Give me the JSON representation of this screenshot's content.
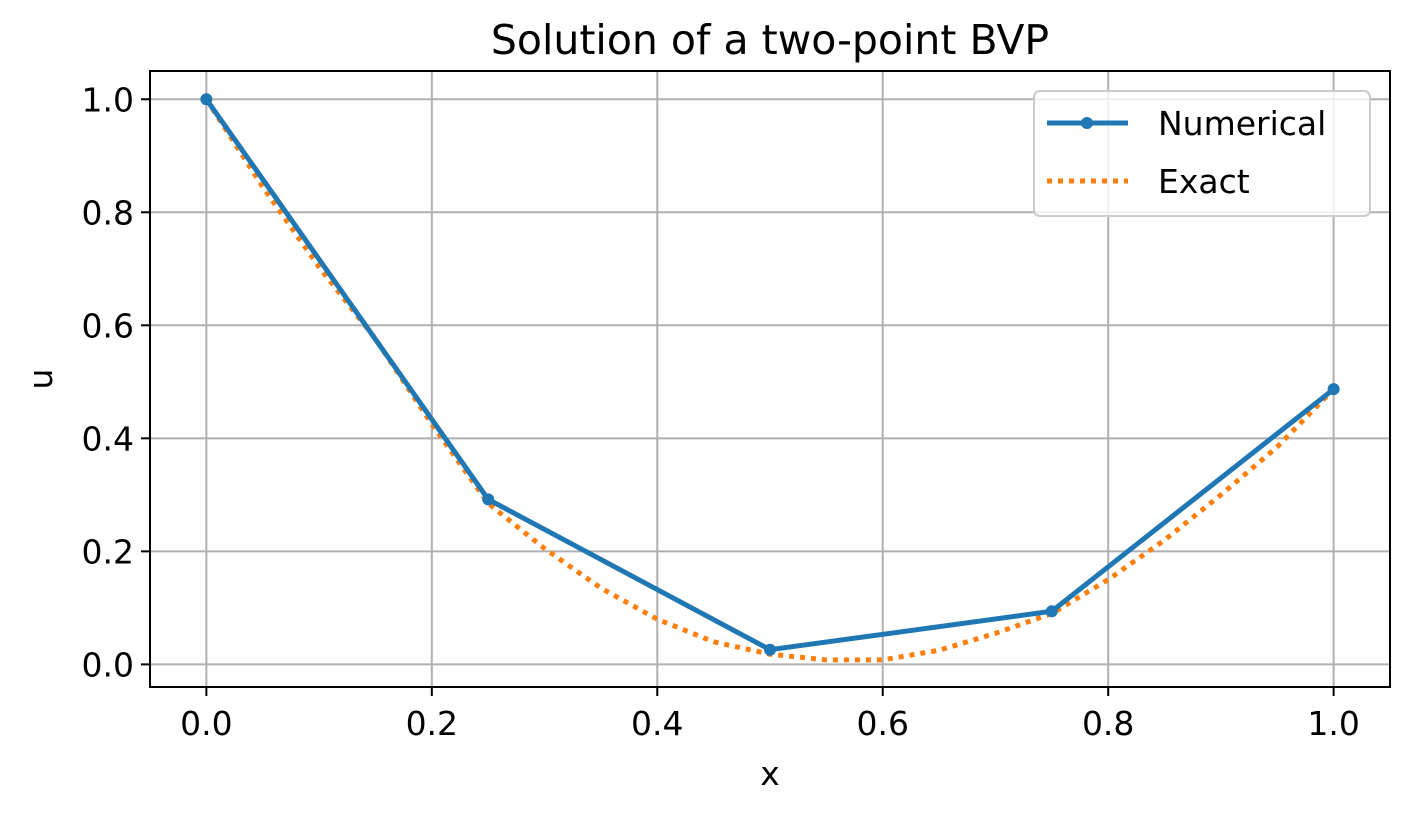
{
  "chart_data": {
    "type": "line",
    "title": "Solution of a two-point BVP",
    "xlabel": "x",
    "ylabel": "u",
    "xlim": [
      -0.05,
      1.05
    ],
    "ylim": [
      -0.04,
      1.05
    ],
    "xticks": [
      0.0,
      0.2,
      0.4,
      0.6,
      0.8,
      1.0
    ],
    "xtick_labels": [
      "0.0",
      "0.2",
      "0.4",
      "0.6",
      "0.8",
      "1.0"
    ],
    "yticks": [
      0.0,
      0.2,
      0.4,
      0.6,
      0.8,
      1.0
    ],
    "ytick_labels": [
      "0.0",
      "0.2",
      "0.4",
      "0.6",
      "0.8",
      "1.0"
    ],
    "grid": true,
    "legend_position": "top-right",
    "series": [
      {
        "name": "Numerical",
        "style": "solid-with-markers",
        "color": "#1f77b4",
        "x": [
          0.0,
          0.25,
          0.5,
          0.75,
          1.0
        ],
        "y": [
          1.0,
          0.292,
          0.026,
          0.094,
          0.487
        ]
      },
      {
        "name": "Exact",
        "style": "dotted",
        "color": "#ff7f0e",
        "x": [
          0.0,
          0.05,
          0.1,
          0.15,
          0.2,
          0.25,
          0.3,
          0.35,
          0.4,
          0.45,
          0.5,
          0.55,
          0.6,
          0.65,
          0.7,
          0.75,
          0.8,
          0.85,
          0.9,
          0.95,
          1.0
        ],
        "y": [
          1.0,
          0.845,
          0.703,
          0.576,
          0.425,
          0.285,
          0.205,
          0.135,
          0.08,
          0.04,
          0.018,
          0.008,
          0.008,
          0.025,
          0.055,
          0.09,
          0.15,
          0.22,
          0.3,
          0.385,
          0.487
        ]
      }
    ]
  }
}
